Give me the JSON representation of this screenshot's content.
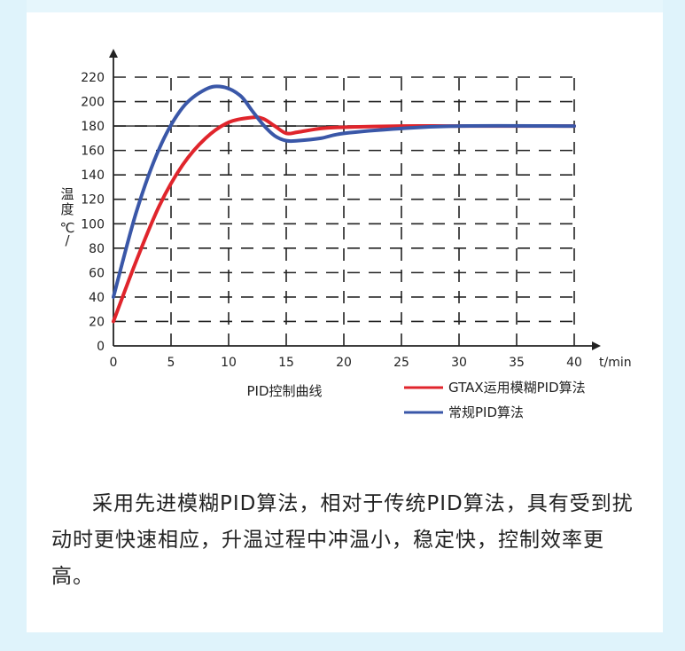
{
  "chart_data": {
    "type": "line",
    "title": "PID控制曲线",
    "xlabel": "t/min",
    "ylabel": "温度℃/",
    "ylabel_chars": [
      "温",
      "度",
      "℃",
      "/"
    ],
    "xlim": [
      0,
      40
    ],
    "ylim": [
      0,
      220
    ],
    "x_ticks": [
      0,
      5,
      10,
      15,
      20,
      25,
      30,
      35,
      40
    ],
    "y_ticks": [
      0,
      20,
      40,
      60,
      80,
      100,
      120,
      140,
      160,
      180,
      200,
      220
    ],
    "grid": "dashed",
    "reference_line": 180,
    "legend_position": "bottom-right",
    "series": [
      {
        "name": "GTAX运用模糊PID算法",
        "color": "#e0252c",
        "x": [
          0,
          2,
          4,
          6,
          8,
          10,
          12,
          13,
          14,
          15,
          16,
          18,
          20,
          25,
          30,
          40
        ],
        "y": [
          20,
          70,
          115,
          148,
          170,
          183,
          187,
          186,
          180,
          174,
          175,
          178,
          179,
          180,
          180,
          180
        ]
      },
      {
        "name": "常规PID算法",
        "color": "#3a57a8",
        "x": [
          0,
          2,
          4,
          6,
          8,
          9.5,
          11,
          12,
          13,
          14,
          15,
          16,
          18,
          20,
          25,
          30,
          40
        ],
        "y": [
          40,
          110,
          162,
          195,
          210,
          212,
          205,
          193,
          181,
          172,
          168,
          168,
          170,
          174,
          178,
          180,
          180
        ]
      }
    ]
  },
  "text": {
    "paragraph": "采用先进模糊PID算法，相对于传统PID算法，具有受到扰动时更快速相应，升温过程中冲温小，稳定快，控制效率更高。"
  }
}
